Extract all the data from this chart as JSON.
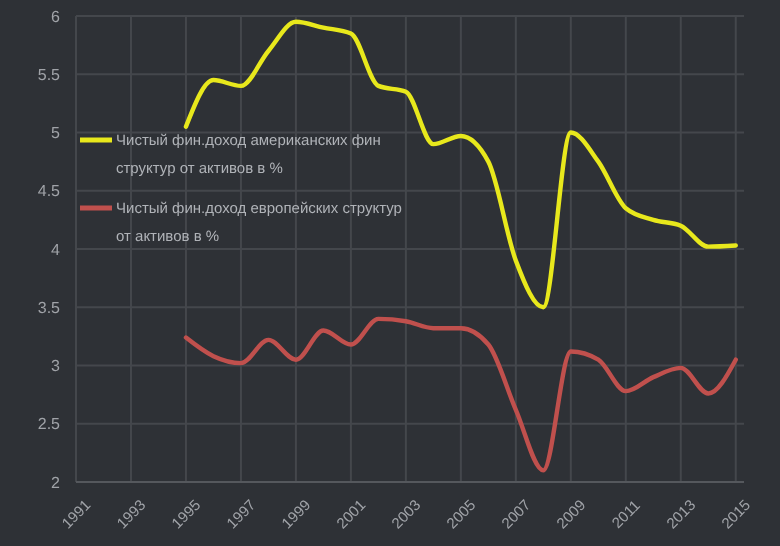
{
  "chart_data": {
    "type": "line",
    "x": [
      1995,
      1996,
      1997,
      1998,
      1999,
      2000,
      2001,
      2002,
      2003,
      2004,
      2005,
      2006,
      2007,
      2008,
      2009,
      2010,
      2011,
      2012,
      2013,
      2014,
      2015
    ],
    "series": [
      {
        "name": "Чистый фин.доход американских фин структур от активов в %",
        "color": "#e8e81c",
        "values": [
          5.05,
          5.45,
          5.4,
          5.7,
          5.95,
          5.9,
          5.85,
          5.4,
          5.35,
          4.9,
          4.97,
          4.75,
          3.9,
          3.5,
          5.0,
          4.75,
          4.35,
          4.25,
          4.2,
          4.02,
          4.03
        ]
      },
      {
        "name": "Чистый фин.доход европейских структур от активов в %",
        "color": "#c0504d",
        "values": [
          3.24,
          3.08,
          3.02,
          3.22,
          3.05,
          3.3,
          3.18,
          3.4,
          3.38,
          3.32,
          3.32,
          3.18,
          2.62,
          2.1,
          3.12,
          3.05,
          2.78,
          2.9,
          2.98,
          2.76,
          3.05
        ]
      }
    ],
    "xlim": [
      1991,
      2015.3
    ],
    "xticks": [
      1991,
      1993,
      1995,
      1997,
      1999,
      2001,
      2003,
      2005,
      2007,
      2009,
      2011,
      2013,
      2015
    ],
    "ylim": [
      2,
      6
    ],
    "yticks": [
      2,
      2.5,
      3,
      3.5,
      4,
      4.5,
      5,
      5.5,
      6
    ],
    "grid": true,
    "legend": "left",
    "marker": "none",
    "line_style": "solid"
  }
}
